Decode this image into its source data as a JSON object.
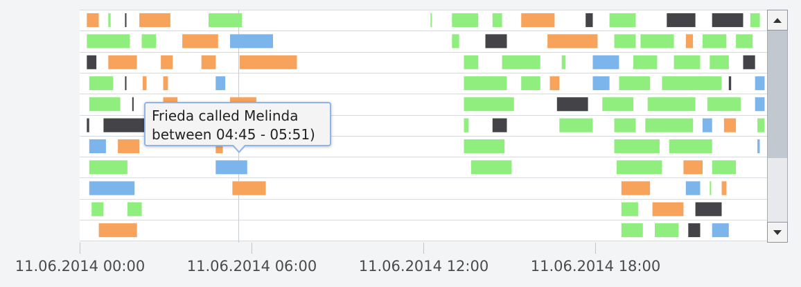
{
  "chart_data": {
    "type": "timeline",
    "title": "",
    "x_start": "2014-06-11T00:00",
    "x_end": "2014-06-11T23:59",
    "x_ticks": [
      {
        "time": "2014-06-11T00:00",
        "label": "11.06.2014 00:00"
      },
      {
        "time": "2014-06-11T06:00",
        "label": "11.06.2014 06:00"
      },
      {
        "time": "2014-06-11T12:00",
        "label": "11.06.2014 12:00"
      },
      {
        "time": "2014-06-11T18:00",
        "label": "11.06.2014 18:00"
      }
    ],
    "cursor_time": "2014-06-11T05:33",
    "colors": {
      "green": "#90ee7e",
      "orange": "#f7a35c",
      "blue": "#7cb5ec",
      "dark": "#434348"
    },
    "rows": [
      [
        [
          "00:15",
          "00:40",
          "orange"
        ],
        [
          "01:00",
          "01:05",
          "green"
        ],
        [
          "01:35",
          "01:38",
          "dark"
        ],
        [
          "02:05",
          "03:10",
          "orange"
        ],
        [
          "04:30",
          "05:40",
          "green"
        ],
        [
          "12:15",
          "12:18",
          "green"
        ],
        [
          "13:00",
          "13:55",
          "green"
        ],
        [
          "14:25",
          "14:45",
          "green"
        ],
        [
          "15:25",
          "16:35",
          "orange"
        ],
        [
          "17:40",
          "17:55",
          "dark"
        ],
        [
          "18:30",
          "19:25",
          "green"
        ],
        [
          "20:30",
          "21:30",
          "dark"
        ],
        [
          "22:05",
          "23:10",
          "dark"
        ],
        [
          "23:25",
          "23:45",
          "green"
        ]
      ],
      [
        [
          "00:15",
          "01:45",
          "green"
        ],
        [
          "02:10",
          "02:40",
          "green"
        ],
        [
          "03:35",
          "04:50",
          "orange"
        ],
        [
          "05:15",
          "06:45",
          "blue"
        ],
        [
          "13:00",
          "13:15",
          "green"
        ],
        [
          "14:10",
          "14:55",
          "dark"
        ],
        [
          "16:20",
          "18:05",
          "orange"
        ],
        [
          "18:40",
          "19:25",
          "green"
        ],
        [
          "19:35",
          "20:45",
          "green"
        ],
        [
          "21:10",
          "21:25",
          "orange"
        ],
        [
          "21:45",
          "22:35",
          "green"
        ],
        [
          "22:55",
          "23:30",
          "green"
        ]
      ],
      [
        [
          "00:15",
          "00:35",
          "dark"
        ],
        [
          "01:00",
          "02:00",
          "orange"
        ],
        [
          "02:50",
          "03:15",
          "orange"
        ],
        [
          "04:15",
          "04:45",
          "orange"
        ],
        [
          "05:35",
          "07:35",
          "orange"
        ],
        [
          "13:25",
          "13:55",
          "green"
        ],
        [
          "14:45",
          "16:05",
          "green"
        ],
        [
          "16:50",
          "16:58",
          "green"
        ],
        [
          "17:55",
          "18:50",
          "blue"
        ],
        [
          "19:20",
          "20:10",
          "green"
        ],
        [
          "20:45",
          "21:40",
          "green"
        ],
        [
          "22:00",
          "22:40",
          "green"
        ],
        [
          "23:10",
          "23:35",
          "dark"
        ]
      ],
      [
        [
          "00:20",
          "01:10",
          "green"
        ],
        [
          "01:35",
          "01:38",
          "dark"
        ],
        [
          "02:12",
          "02:20",
          "orange"
        ],
        [
          "02:55",
          "03:05",
          "orange"
        ],
        [
          "04:45",
          "05:05",
          "blue"
        ],
        [
          "13:25",
          "14:55",
          "green"
        ],
        [
          "15:25",
          "16:05",
          "green"
        ],
        [
          "16:25",
          "16:45",
          "orange"
        ],
        [
          "17:55",
          "18:30",
          "blue"
        ],
        [
          "18:50",
          "19:55",
          "green"
        ],
        [
          "20:20",
          "22:25",
          "green"
        ],
        [
          "22:40",
          "22:45",
          "dark"
        ],
        [
          "23:35",
          "23:55",
          "blue"
        ]
      ],
      [
        [
          "00:20",
          "01:25",
          "green"
        ],
        [
          "01:50",
          "01:53",
          "dark"
        ],
        [
          "02:55",
          "03:25",
          "orange"
        ],
        [
          "05:15",
          "06:10",
          "orange"
        ],
        [
          "13:25",
          "15:10",
          "green"
        ],
        [
          "16:40",
          "17:45",
          "dark"
        ],
        [
          "18:15",
          "19:20",
          "green"
        ],
        [
          "19:50",
          "21:30",
          "green"
        ],
        [
          "21:55",
          "23:05",
          "green"
        ],
        [
          "23:35",
          "23:55",
          "blue"
        ]
      ],
      [
        [
          "00:15",
          "00:20",
          "dark"
        ],
        [
          "00:50",
          "02:20",
          "dark"
        ],
        [
          "13:25",
          "13:35",
          "green"
        ],
        [
          "14:25",
          "14:55",
          "dark"
        ],
        [
          "16:45",
          "17:55",
          "green"
        ],
        [
          "18:40",
          "19:25",
          "green"
        ],
        [
          "19:45",
          "21:25",
          "green"
        ],
        [
          "21:45",
          "22:05",
          "blue"
        ],
        [
          "22:30",
          "22:55",
          "orange"
        ],
        [
          "23:40",
          "23:55",
          "green"
        ]
      ],
      [
        [
          "00:20",
          "00:55",
          "blue"
        ],
        [
          "01:20",
          "02:05",
          "orange"
        ],
        [
          "04:45",
          "05:00",
          "orange"
        ],
        [
          "13:25",
          "14:50",
          "green"
        ],
        [
          "18:40",
          "20:15",
          "green"
        ],
        [
          "20:35",
          "22:05",
          "green"
        ],
        [
          "23:40",
          "23:45",
          "blue"
        ]
      ],
      [
        [
          "00:20",
          "01:40",
          "green"
        ],
        [
          "04:45",
          "05:51",
          "blue"
        ],
        [
          "13:40",
          "15:05",
          "green"
        ],
        [
          "18:45",
          "20:20",
          "green"
        ],
        [
          "21:05",
          "21:45",
          "orange"
        ],
        [
          "22:05",
          "22:55",
          "green"
        ]
      ],
      [
        [
          "00:20",
          "01:55",
          "blue"
        ],
        [
          "05:20",
          "06:30",
          "orange"
        ],
        [
          "18:55",
          "19:55",
          "orange"
        ],
        [
          "21:10",
          "21:40",
          "blue"
        ],
        [
          "22:00",
          "22:03",
          "green"
        ],
        [
          "22:25",
          "22:35",
          "orange"
        ]
      ],
      [
        [
          "00:25",
          "00:50",
          "green"
        ],
        [
          "01:40",
          "02:10",
          "green"
        ],
        [
          "18:55",
          "19:30",
          "green"
        ],
        [
          "20:00",
          "21:05",
          "orange"
        ],
        [
          "21:30",
          "22:25",
          "dark"
        ]
      ],
      [
        [
          "00:40",
          "02:00",
          "orange"
        ],
        [
          "18:55",
          "19:40",
          "green"
        ],
        [
          "20:05",
          "20:55",
          "green"
        ],
        [
          "21:15",
          "21:40",
          "dark"
        ],
        [
          "22:05",
          "22:40",
          "blue"
        ]
      ]
    ]
  },
  "tooltip": {
    "line1": "Frieda called Melinda",
    "line2": "between 04:45 - 05:51)"
  },
  "scrollbar": {
    "up_icon": "chevron-up-icon",
    "down_icon": "chevron-down-icon"
  }
}
